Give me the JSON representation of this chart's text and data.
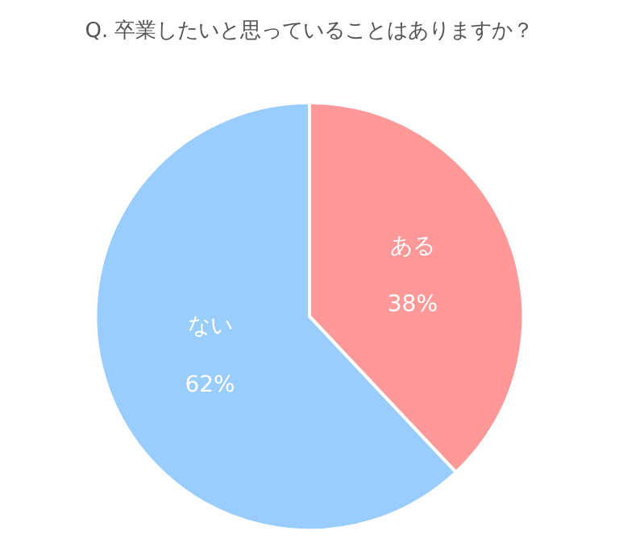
{
  "chart_data": {
    "type": "pie",
    "title": "Q. 卒業したいと思っていることはありますか？",
    "categories": [
      "ある",
      "ない"
    ],
    "values": [
      38,
      62
    ],
    "value_labels": [
      "38%",
      "62%"
    ],
    "colors": [
      "#ff9999",
      "#99ccff"
    ],
    "legend": false
  }
}
